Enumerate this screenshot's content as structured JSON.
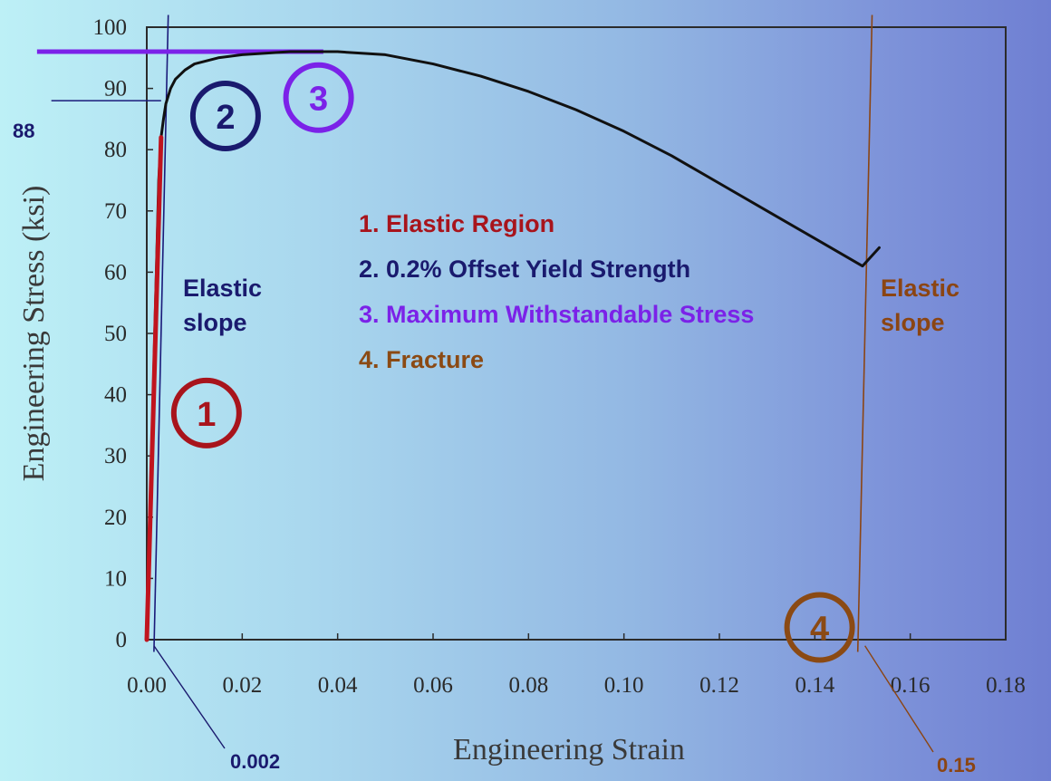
{
  "chart_data": {
    "type": "line",
    "xlabel": "Engineering Strain",
    "ylabel": "Engineering Stress (ksi)",
    "xlim": [
      0,
      0.18
    ],
    "ylim": [
      0,
      100
    ],
    "x_ticks": [
      "0.00",
      "0.02",
      "0.04",
      "0.06",
      "0.08",
      "0.10",
      "0.12",
      "0.14",
      "0.16",
      "0.18"
    ],
    "y_ticks": [
      "0",
      "10",
      "20",
      "30",
      "40",
      "50",
      "60",
      "70",
      "80",
      "90",
      "100"
    ],
    "grid": false,
    "series": [
      {
        "style": "curve",
        "color": "#111111",
        "x": [
          0.0,
          0.001,
          0.002,
          0.0025,
          0.003,
          0.0035,
          0.004,
          0.005,
          0.006,
          0.008,
          0.01,
          0.015,
          0.02,
          0.03,
          0.04,
          0.05,
          0.06,
          0.07,
          0.08,
          0.09,
          0.1,
          0.11,
          0.12,
          0.13,
          0.14,
          0.15,
          0.1535
        ],
        "y": [
          0,
          30,
          60,
          75,
          82,
          85,
          87.5,
          90,
          91.5,
          93,
          94,
          95,
          95.5,
          96,
          96,
          95.5,
          94,
          92,
          89.5,
          86.5,
          83,
          79,
          74.5,
          70,
          65.5,
          61,
          64
        ]
      },
      {
        "style": "elastic",
        "color": "#c0141e",
        "x": [
          0.0,
          0.003
        ],
        "y": [
          0,
          82
        ]
      }
    ],
    "reference_lines": [
      {
        "color": "#1a1a7a",
        "x": [
          0.0015,
          0.0045
        ],
        "y": [
          -2,
          102
        ]
      },
      {
        "color": "#8b4513",
        "x": [
          0.149,
          0.152
        ],
        "y": [
          -2,
          102
        ]
      },
      {
        "color": "#1a1a7a",
        "x": [
          -0.02,
          0.003
        ],
        "y": [
          88,
          88
        ]
      },
      {
        "color": "#7b22e8",
        "x": [
          -0.023,
          0.037
        ],
        "y": [
          96,
          96
        ]
      }
    ],
    "markers": [
      {
        "label": "1",
        "color": "#a8141c",
        "x": 0.0125,
        "y": 37
      },
      {
        "label": "2",
        "color": "#1a1a6e",
        "x": 0.0165,
        "y": 85.5
      },
      {
        "label": "3",
        "color": "#7b22e8",
        "x": 0.036,
        "y": 88.5
      },
      {
        "label": "4",
        "color": "#8b4a14",
        "x": 0.141,
        "y": 2
      }
    ],
    "legend": [
      {
        "text": "1. Elastic Region",
        "color": "#a8141c"
      },
      {
        "text": "2. 0.2% Offset Yield Strength",
        "color": "#1a1a6e"
      },
      {
        "text": "3. Maximum Withstandable Stress",
        "color": "#7b22e8"
      },
      {
        "text": "4. Fracture",
        "color": "#8b4a14"
      }
    ],
    "annotations": {
      "stress_88": "88",
      "strain_0002": "0.002",
      "strain_015": "0.15",
      "elastic_slope_left_line1": "Elastic",
      "elastic_slope_left_line2": "slope",
      "elastic_slope_right_line1": "Elastic",
      "elastic_slope_right_line2": "slope"
    }
  }
}
